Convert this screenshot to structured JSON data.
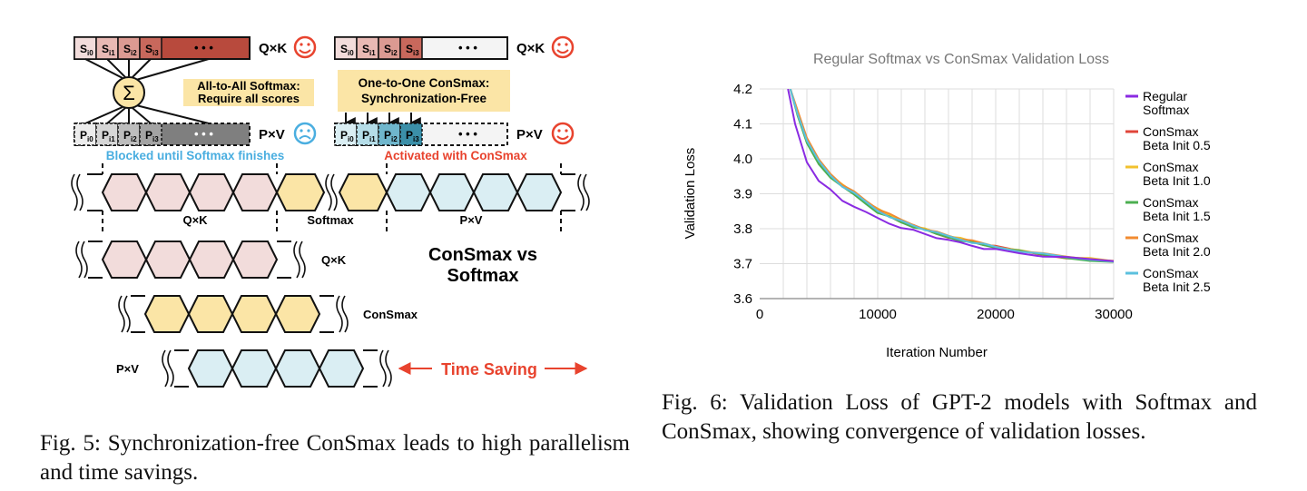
{
  "figure5": {
    "qk_label": "Q×K",
    "pv_label": "P×V",
    "s_cells": [
      "S",
      "S",
      "S",
      "S"
    ],
    "s_subs": [
      "i0",
      "i1",
      "i2",
      "i3"
    ],
    "p_cells": [
      "P",
      "P",
      "P",
      "P"
    ],
    "p_subs": [
      "i0",
      "i1",
      "i2",
      "i3"
    ],
    "ellipsis": "• • •",
    "sigma": "Σ",
    "all_to_all_line1": "All-to-All Softmax:",
    "all_to_all_line2": "Require all scores",
    "one_to_one_line1": "One-to-One ConSmax:",
    "one_to_one_line2": "Synchronization-Free",
    "blocked_text": "Blocked until Softmax finishes",
    "activated_text": "Activated with ConSmax",
    "timeline_qk": "Q×K",
    "timeline_softmax": "Softmax",
    "timeline_pv": "P×V",
    "consmax_vs_line1": "ConSmax vs",
    "consmax_vs_line2": "Softmax",
    "row_qk": "Q×K",
    "row_consmax": "ConSmax",
    "row_pv": "P×V",
    "time_saving": "Time Saving",
    "colors": {
      "qk_fill": "#f2dcdb",
      "softmax_fill": "#fbe5a6",
      "pv_fill": "#daeef3",
      "red": "#e8432e",
      "blue": "#4aaee0",
      "dark_red": "#b84a3d"
    }
  },
  "chart_data": {
    "type": "line",
    "title": "Regular Softmax vs ConSmax Validation Loss",
    "xlabel": "Iteration Number",
    "ylabel": "Validation Loss",
    "xlim": [
      0,
      30000
    ],
    "ylim": [
      3.6,
      4.2
    ],
    "xticks": [
      0,
      10000,
      20000,
      30000
    ],
    "yticks": [
      3.6,
      3.7,
      3.8,
      3.9,
      4.0,
      4.1,
      4.2
    ],
    "xtick_labels": [
      "0",
      "10000",
      "20000",
      "30000"
    ],
    "ytick_labels": [
      "3.6",
      "3.7",
      "3.8",
      "3.9",
      "4.0",
      "4.1",
      "4.2"
    ],
    "grid": true,
    "legend_position": "right",
    "series": [
      {
        "name_line1": "Regular",
        "name_line2": "Softmax",
        "color": "#8a2be2",
        "x": [
          2400,
          3000,
          4000,
          5000,
          6000,
          7000,
          8000,
          9000,
          10000,
          11000,
          12000,
          13000,
          14000,
          15000,
          16000,
          17000,
          18000,
          19000,
          20000,
          22000,
          24000,
          26000,
          28000,
          30000
        ],
        "y": [
          4.2,
          4.1,
          3.99,
          3.94,
          3.91,
          3.88,
          3.865,
          3.845,
          3.83,
          3.815,
          3.805,
          3.795,
          3.785,
          3.775,
          3.765,
          3.76,
          3.752,
          3.745,
          3.74,
          3.73,
          3.722,
          3.716,
          3.712,
          3.707
        ]
      },
      {
        "name_line1": "ConSmax",
        "name_line2": "Beta Init 0.5",
        "color": "#e0453a",
        "x": [
          2600,
          3200,
          4000,
          5000,
          6000,
          7000,
          8000,
          9000,
          10000,
          11000,
          12000,
          13000,
          14000,
          15000,
          16000,
          17000,
          18000,
          19000,
          20000,
          22000,
          24000,
          26000,
          28000,
          30000
        ],
        "y": [
          4.2,
          4.13,
          4.05,
          3.99,
          3.95,
          3.92,
          3.9,
          3.875,
          3.85,
          3.835,
          3.82,
          3.808,
          3.797,
          3.786,
          3.777,
          3.77,
          3.762,
          3.755,
          3.748,
          3.736,
          3.726,
          3.718,
          3.712,
          3.706
        ]
      },
      {
        "name_line1": "ConSmax",
        "name_line2": "Beta Init 1.0",
        "color": "#f2c12e",
        "x": [
          2600,
          3200,
          4000,
          5000,
          6000,
          7000,
          8000,
          9000,
          10000,
          11000,
          12000,
          13000,
          14000,
          15000,
          16000,
          17000,
          18000,
          19000,
          20000,
          22000,
          24000,
          26000,
          28000,
          30000
        ],
        "y": [
          4.2,
          4.135,
          4.055,
          3.995,
          3.955,
          3.925,
          3.903,
          3.878,
          3.855,
          3.838,
          3.823,
          3.81,
          3.799,
          3.788,
          3.779,
          3.771,
          3.763,
          3.756,
          3.749,
          3.737,
          3.727,
          3.719,
          3.713,
          3.707
        ]
      },
      {
        "name_line1": "ConSmax",
        "name_line2": "Beta Init 1.5",
        "color": "#4caf50",
        "x": [
          2600,
          3200,
          4000,
          5000,
          6000,
          7000,
          8000,
          9000,
          10000,
          11000,
          12000,
          13000,
          14000,
          15000,
          16000,
          17000,
          18000,
          19000,
          20000,
          22000,
          24000,
          26000,
          28000,
          30000
        ],
        "y": [
          4.2,
          4.125,
          4.045,
          3.985,
          3.948,
          3.918,
          3.897,
          3.872,
          3.848,
          3.833,
          3.818,
          3.806,
          3.795,
          3.784,
          3.776,
          3.768,
          3.76,
          3.753,
          3.747,
          3.735,
          3.725,
          3.717,
          3.711,
          3.705
        ]
      },
      {
        "name_line1": "ConSmax",
        "name_line2": "Beta Init 2.0",
        "color": "#f28b30",
        "x": [
          2600,
          3200,
          4000,
          5000,
          6000,
          7000,
          8000,
          9000,
          10000,
          11000,
          12000,
          13000,
          14000,
          15000,
          16000,
          17000,
          18000,
          19000,
          20000,
          22000,
          24000,
          26000,
          28000,
          30000
        ],
        "y": [
          4.2,
          4.14,
          4.06,
          3.998,
          3.958,
          3.928,
          3.905,
          3.88,
          3.858,
          3.84,
          3.825,
          3.812,
          3.8,
          3.79,
          3.78,
          3.772,
          3.764,
          3.757,
          3.75,
          3.738,
          3.728,
          3.72,
          3.714,
          3.708
        ]
      },
      {
        "name_line1": "ConSmax",
        "name_line2": "Beta Init 2.5",
        "color": "#5bc0de",
        "x": [
          2600,
          3200,
          4000,
          5000,
          6000,
          7000,
          8000,
          9000,
          10000,
          11000,
          12000,
          13000,
          14000,
          15000,
          16000,
          17000,
          18000,
          19000,
          20000,
          22000,
          24000,
          26000,
          28000,
          30000
        ],
        "y": [
          4.2,
          4.13,
          4.052,
          3.992,
          3.952,
          3.922,
          3.9,
          3.876,
          3.852,
          3.836,
          3.821,
          3.809,
          3.798,
          3.787,
          3.778,
          3.77,
          3.762,
          3.755,
          3.748,
          3.736,
          3.726,
          3.718,
          3.712,
          3.706
        ]
      }
    ]
  },
  "captions": {
    "fig5": "Fig. 5: Synchronization-free ConSmax leads to high parallelism and time savings.",
    "fig6": "Fig. 6: Validation Loss of GPT-2 models with Softmax and ConSmax, showing convergence of validation losses."
  }
}
